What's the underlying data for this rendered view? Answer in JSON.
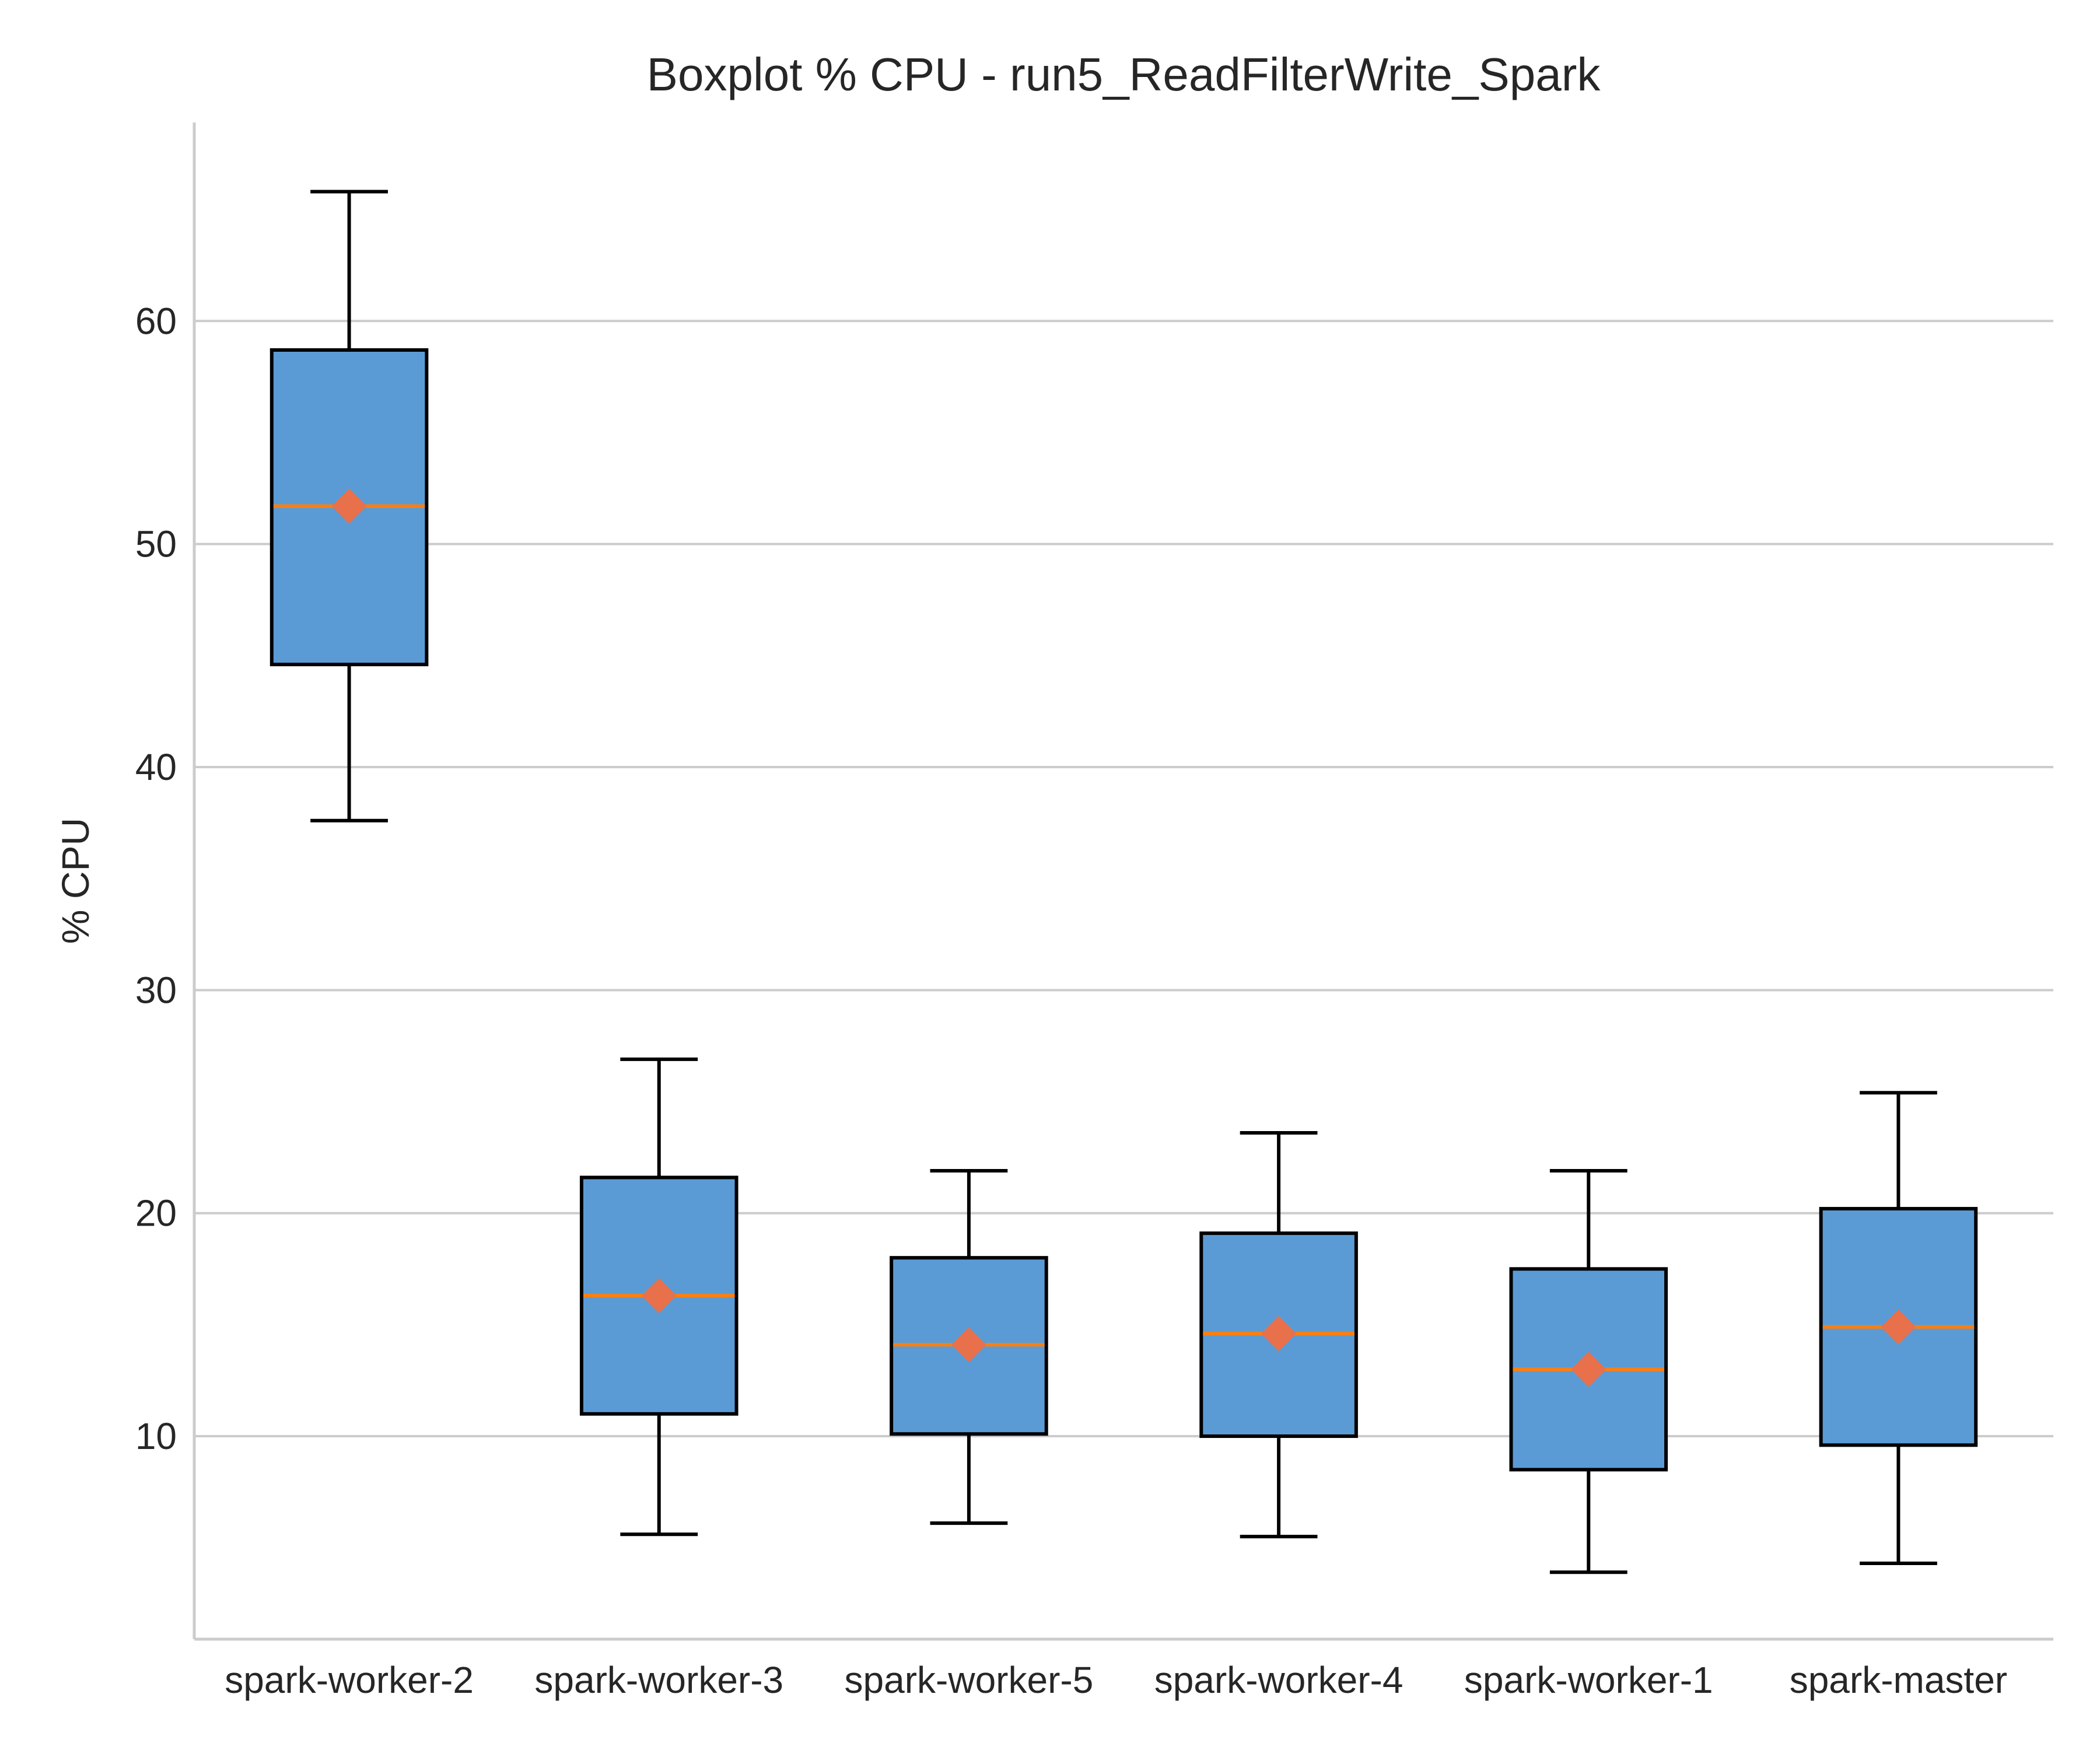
{
  "chart_data": {
    "type": "boxplot",
    "title": "Boxplot % CPU - run5_ReadFilterWrite_Spark",
    "xlabel": "",
    "ylabel": "% CPU",
    "ylim": [
      0.9,
      68.9
    ],
    "yticks": [
      10,
      20,
      30,
      40,
      50,
      60
    ],
    "grid": "horizontal",
    "colors": {
      "box_fill": "#5b9bd5",
      "box_edge": "#000000",
      "median": "#ff7f0e",
      "mean_marker": "#e8704a"
    },
    "categories": [
      "spark-worker-2",
      "spark-worker-3",
      "spark-worker-5",
      "spark-worker-4",
      "spark-worker-1",
      "spark-master"
    ],
    "boxes": [
      {
        "name": "spark-worker-2",
        "whislo": 37.6,
        "q1": 44.6,
        "med": 51.7,
        "q3": 58.7,
        "whishi": 65.8,
        "mean": 51.7
      },
      {
        "name": "spark-worker-3",
        "whislo": 5.6,
        "q1": 11.0,
        "med": 16.3,
        "q3": 21.6,
        "whishi": 26.9,
        "mean": 16.3
      },
      {
        "name": "spark-worker-5",
        "whislo": 6.1,
        "q1": 10.1,
        "med": 14.1,
        "q3": 18.0,
        "whishi": 21.9,
        "mean": 14.1
      },
      {
        "name": "spark-worker-4",
        "whislo": 5.5,
        "q1": 10.0,
        "med": 14.6,
        "q3": 19.1,
        "whishi": 23.6,
        "mean": 14.6
      },
      {
        "name": "spark-worker-1",
        "whislo": 3.9,
        "q1": 8.5,
        "med": 13.0,
        "q3": 17.5,
        "whishi": 21.9,
        "mean": 13.0
      },
      {
        "name": "spark-master",
        "whislo": 4.3,
        "q1": 9.6,
        "med": 14.9,
        "q3": 20.2,
        "whishi": 25.4,
        "mean": 14.9
      }
    ]
  }
}
